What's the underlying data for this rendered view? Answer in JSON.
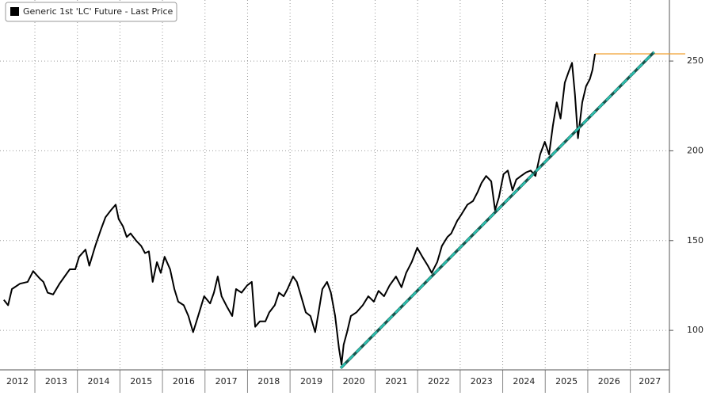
{
  "chart_data": {
    "type": "line",
    "series": [
      {
        "name": "Generic 1st 'LC' Future - Last Price",
        "color": "#000000",
        "x": [
          2012.27,
          2012.37,
          2012.46,
          2012.65,
          2012.83,
          2012.96,
          2013.11,
          2013.2,
          2013.3,
          2013.43,
          2013.58,
          2013.67,
          2013.82,
          2013.95,
          2014.04,
          2014.19,
          2014.28,
          2014.42,
          2014.55,
          2014.66,
          2014.79,
          2014.9,
          2014.97,
          2015.07,
          2015.16,
          2015.25,
          2015.38,
          2015.5,
          2015.59,
          2015.68,
          2015.77,
          2015.87,
          2015.96,
          2016.05,
          2016.18,
          2016.28,
          2016.37,
          2016.5,
          2016.61,
          2016.72,
          2016.8,
          2016.89,
          2016.98,
          2017.12,
          2017.21,
          2017.3,
          2017.39,
          2017.52,
          2017.64,
          2017.73,
          2017.86,
          2017.99,
          2018.1,
          2018.18,
          2018.29,
          2018.42,
          2018.51,
          2018.64,
          2018.74,
          2018.85,
          2018.94,
          2019.07,
          2019.16,
          2019.26,
          2019.37,
          2019.48,
          2019.59,
          2019.67,
          2019.76,
          2019.87,
          2019.96,
          2020.06,
          2020.15,
          2020.21,
          2020.26,
          2020.34,
          2020.43,
          2020.56,
          2020.71,
          2020.84,
          2020.97,
          2021.08,
          2021.21,
          2021.34,
          2021.49,
          2021.62,
          2021.73,
          2021.86,
          2021.99,
          2022.11,
          2022.24,
          2022.33,
          2022.46,
          2022.57,
          2022.7,
          2022.79,
          2022.93,
          2023.04,
          2023.17,
          2023.3,
          2023.41,
          2023.5,
          2023.61,
          2023.73,
          2023.82,
          2023.91,
          2024.02,
          2024.12,
          2024.23,
          2024.32,
          2024.43,
          2024.55,
          2024.66,
          2024.77,
          2024.88,
          2024.99,
          2025.09,
          2025.18,
          2025.27,
          2025.36,
          2025.46,
          2025.55,
          2025.63,
          2025.7,
          2025.77,
          2025.87,
          2025.96,
          2026.05,
          2026.11,
          2026.17
        ],
        "values": [
          117,
          114,
          123,
          126,
          127,
          133,
          129,
          127,
          121,
          120,
          126,
          129,
          134,
          134,
          141,
          145,
          136,
          147,
          156,
          163,
          167,
          170,
          162,
          158,
          152,
          154,
          150,
          147,
          143,
          144,
          127,
          138,
          132,
          141,
          134,
          123,
          116,
          114,
          108,
          99,
          105,
          112,
          119,
          115,
          121,
          130,
          119,
          113,
          108,
          123,
          121,
          125,
          127,
          102,
          105,
          105,
          110,
          114,
          121,
          119,
          123,
          130,
          127,
          119,
          110,
          108,
          99,
          110,
          123,
          127,
          121,
          108,
          90,
          81,
          92,
          99,
          108,
          110,
          114,
          119,
          116,
          122,
          119,
          125,
          130,
          124,
          132,
          138,
          146,
          141,
          136,
          132,
          138,
          147,
          152,
          154,
          161,
          165,
          170,
          172,
          177,
          182,
          186,
          183,
          167,
          174,
          187,
          189,
          178,
          184,
          186,
          188,
          189,
          186,
          198,
          205,
          198,
          214,
          227,
          218,
          238,
          244,
          249,
          231,
          207,
          227,
          236,
          240,
          245,
          254
        ]
      }
    ],
    "trendline": {
      "color": "#2bbfae",
      "x": [
        2020.19,
        2027.56
      ],
      "values": [
        79,
        255
      ]
    },
    "last_price_line": {
      "color": "#f0a030",
      "value": 254
    },
    "xlim": [
      2012.18,
      2027.92
    ],
    "xticks": [
      2012,
      2013,
      2014,
      2015,
      2016,
      2017,
      2018,
      2019,
      2020,
      2021,
      2022,
      2023,
      2024,
      2025,
      2026,
      2027
    ],
    "ylim": [
      78,
      284
    ],
    "yticks": [
      100,
      150,
      200,
      250
    ],
    "grid": true,
    "legend": "top-left"
  }
}
